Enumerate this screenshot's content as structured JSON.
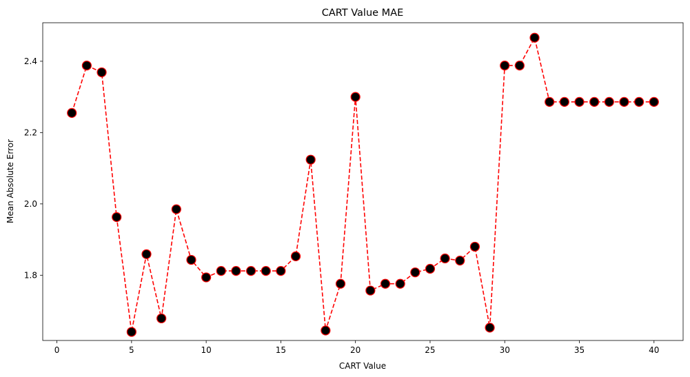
{
  "chart_data": {
    "type": "line",
    "title": "CART Value MAE",
    "xlabel": "CART Value",
    "ylabel": "Mean Absolute Error",
    "xlim": [
      -0.95,
      41.95
    ],
    "ylim": [
      1.617,
      2.508
    ],
    "xticks": [
      0,
      5,
      10,
      15,
      20,
      25,
      30,
      35,
      40
    ],
    "yticks": [
      1.8,
      2.0,
      2.2,
      2.4
    ],
    "xtick_labels": [
      "0",
      "5",
      "10",
      "15",
      "20",
      "25",
      "30",
      "35",
      "40"
    ],
    "ytick_labels": [
      "1.8",
      "2.0",
      "2.2",
      "2.4"
    ],
    "grid": false,
    "legend": false,
    "style": {
      "line_color": "#ff0000",
      "line_style": "dashed",
      "marker": "circle",
      "marker_face": "#000000",
      "marker_edge": "#ff0000"
    },
    "series": [
      {
        "x": [
          1,
          2,
          3,
          4,
          5,
          6,
          7,
          8,
          9,
          10,
          11,
          12,
          13,
          14,
          15,
          16,
          17,
          18,
          19,
          20,
          21,
          22,
          23,
          24,
          25,
          26,
          27,
          28,
          29,
          30,
          31,
          32,
          33,
          34,
          35,
          36,
          37,
          38,
          39,
          40
        ],
        "values": [
          2.255,
          2.388,
          2.369,
          1.963,
          1.641,
          1.859,
          1.679,
          1.985,
          1.843,
          1.794,
          1.812,
          1.812,
          1.812,
          1.812,
          1.812,
          1.853,
          2.124,
          1.645,
          1.776,
          2.3,
          1.757,
          1.776,
          1.776,
          1.808,
          1.818,
          1.847,
          1.841,
          1.88,
          1.653,
          2.388,
          2.388,
          2.466,
          2.286,
          2.286,
          2.286,
          2.286,
          2.286,
          2.286,
          2.286,
          2.286
        ]
      }
    ]
  }
}
